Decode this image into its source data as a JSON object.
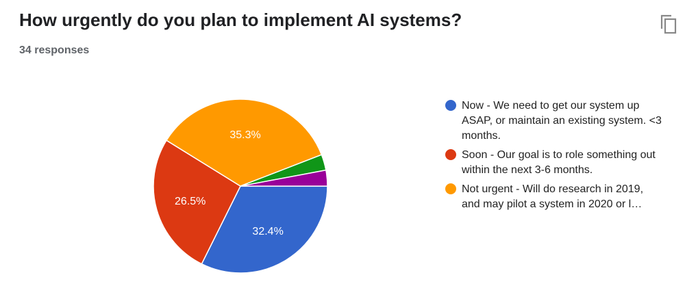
{
  "header": {
    "title": "How urgently do you plan to implement AI systems?",
    "responses": "34 responses",
    "copy_icon": "copy-icon"
  },
  "chart_data": {
    "type": "pie",
    "title": "How urgently do you plan to implement AI systems?",
    "total": 34,
    "slices": [
      {
        "label": "Now - We need to get our system up ASAP, or maintain an existing system. <3 months.",
        "count": 11,
        "percent_label": "32.4%",
        "color": "#3366cc"
      },
      {
        "label": "Soon - Our goal is to role something out within the next 3-6 months.",
        "count": 9,
        "percent_label": "26.5%",
        "color": "#dc3912"
      },
      {
        "label": "Not urgent - Will do research in 2019, and may pilot a system in 2020 or l…",
        "count": 12,
        "percent_label": "35.3%",
        "color": "#ff9900"
      },
      {
        "label": null,
        "count": 1,
        "percent_label": null,
        "color": "#109618"
      },
      {
        "label": null,
        "count": 1,
        "percent_label": null,
        "color": "#990099"
      }
    ],
    "legend_placement": "right"
  }
}
